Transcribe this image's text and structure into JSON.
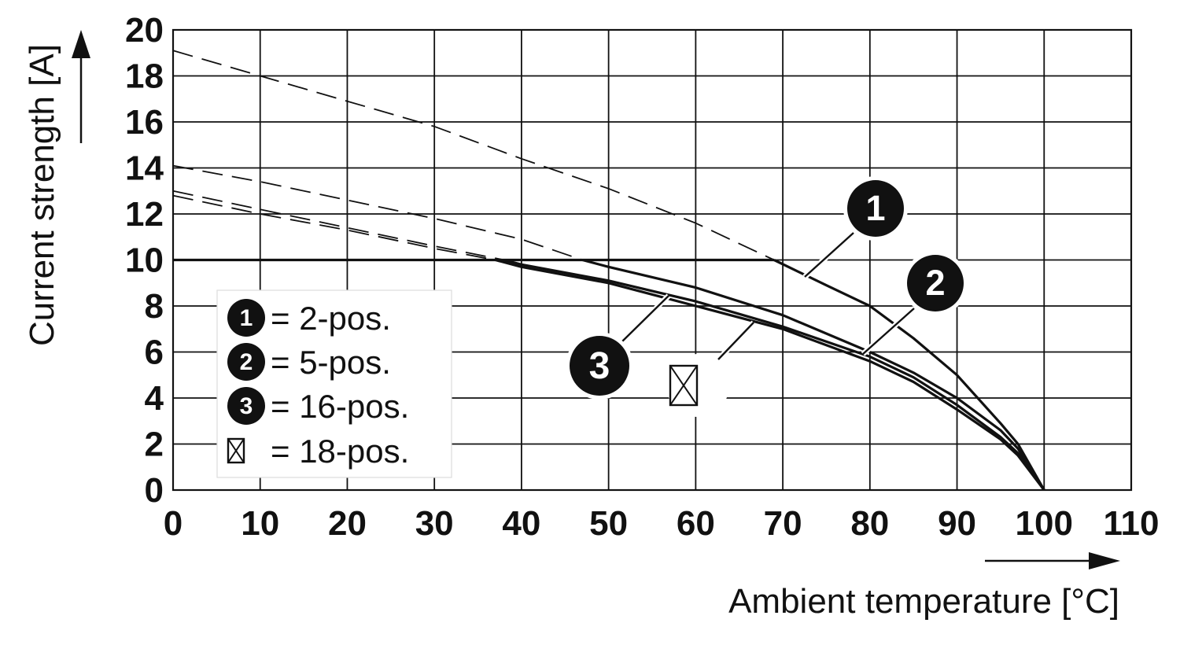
{
  "chart_data": {
    "type": "line",
    "xlabel": "Ambient temperature [°C]",
    "ylabel": "Current strength [A]",
    "xlim": [
      0,
      110
    ],
    "ylim": [
      0,
      20
    ],
    "x_ticks": [
      "0",
      "10",
      "20",
      "30",
      "40",
      "50",
      "60",
      "70",
      "80",
      "90",
      "100",
      "110"
    ],
    "y_ticks": [
      "0",
      "2",
      "4",
      "6",
      "8",
      "10",
      "12",
      "14",
      "16",
      "18",
      "20"
    ],
    "grid": true,
    "legend_position": "lower-left",
    "legend": [
      {
        "marker": "1",
        "text": "= 2-pos."
      },
      {
        "marker": "2",
        "text": "= 5-pos."
      },
      {
        "marker": "3",
        "text": "= 16-pos."
      },
      {
        "marker": "crossed-box",
        "text": "= 18-pos."
      }
    ],
    "callouts": [
      {
        "marker": "1",
        "series": "2-pos."
      },
      {
        "marker": "2",
        "series": "5-pos."
      },
      {
        "marker": "3",
        "series": "16-pos."
      },
      {
        "marker": "crossed-box",
        "series": "18-pos."
      }
    ],
    "limit_line": {
      "y": 10,
      "x": [
        0,
        69
      ]
    },
    "series": [
      {
        "name": "2-pos.",
        "x": [
          0,
          10,
          20,
          30,
          40,
          50,
          60,
          69,
          75,
          80,
          85,
          90,
          95,
          97,
          100
        ],
        "y": [
          19.1,
          18.0,
          16.9,
          15.8,
          14.4,
          13.1,
          11.6,
          10.0,
          8.9,
          8.0,
          6.6,
          5.0,
          2.9,
          2.0,
          0
        ],
        "rated_from_x": 69
      },
      {
        "name": "5-pos.",
        "x": [
          0,
          10,
          20,
          30,
          40,
          47,
          50,
          60,
          70,
          80,
          85,
          90,
          95,
          97,
          100
        ],
        "y": [
          14.1,
          13.4,
          12.6,
          11.8,
          10.9,
          10.0,
          9.7,
          8.8,
          7.6,
          6.0,
          5.1,
          4.0,
          2.6,
          1.8,
          0
        ],
        "rated_from_x": 47
      },
      {
        "name": "16-pos.",
        "x": [
          0,
          10,
          20,
          30,
          38,
          40,
          50,
          60,
          70,
          80,
          85,
          90,
          95,
          97,
          100
        ],
        "y": [
          13.0,
          12.2,
          11.4,
          10.6,
          10.0,
          9.8,
          9.1,
          8.2,
          7.1,
          5.8,
          4.9,
          3.7,
          2.3,
          1.6,
          0
        ],
        "rated_from_x": 38
      },
      {
        "name": "18-pos.",
        "x": [
          0,
          10,
          20,
          30,
          37,
          40,
          50,
          60,
          70,
          80,
          85,
          90,
          95,
          97,
          100
        ],
        "y": [
          12.8,
          12.0,
          11.3,
          10.5,
          10.0,
          9.7,
          9.0,
          8.0,
          7.0,
          5.6,
          4.7,
          3.5,
          2.2,
          1.5,
          0
        ],
        "rated_from_x": 37
      }
    ]
  }
}
